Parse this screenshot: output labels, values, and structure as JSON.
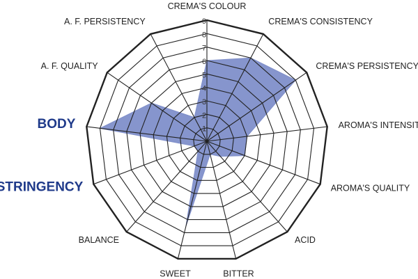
{
  "chart_data": {
    "type": "radar",
    "axes": [
      "CREMA'S COLOUR",
      "CREMA'S CONSISTENCY",
      "CREMA'S PERSISTENCY",
      "AROMA'S INTENSITY",
      "AROMA'S QUALITY",
      "ACID",
      "BITTER",
      "SWEET",
      "BALANCE",
      "ASTRINGENCY",
      "BODY",
      "A. F. QUALITY",
      "A. F. PERSISTENCY"
    ],
    "highlighted_axes": [
      "BODY",
      "ASTRINGENCY"
    ],
    "ticks": [
      "1",
      "2",
      "3",
      "4",
      "5",
      "6",
      "7",
      "8",
      "9"
    ],
    "range": [
      0,
      9
    ],
    "series": [
      {
        "values": [
          6,
          7,
          8,
          3,
          3,
          1.5,
          1,
          6.5,
          1,
          1,
          8,
          5,
          2
        ],
        "color": "#7f8fca"
      }
    ],
    "grid": true,
    "grid_color": "#222222"
  }
}
